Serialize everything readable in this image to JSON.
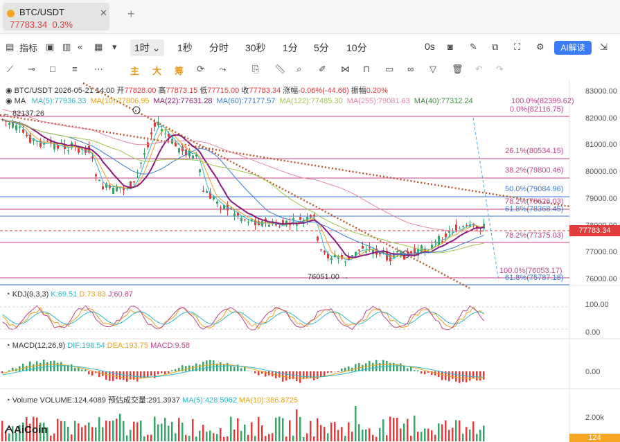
{
  "tab": {
    "name": "BTC/USDT",
    "price": "77783.34",
    "change": "0.3%",
    "close": "✕",
    "new": "+"
  },
  "toolbar": {
    "indicators_label": "指标",
    "intervals": [
      "1时",
      "1秒",
      "分时",
      "30秒",
      "1分",
      "5分",
      "10分"
    ],
    "selected_interval": "1时",
    "countdown": "0s",
    "ai_label": "AI解读"
  },
  "draw_tools": {
    "labels": [
      "主",
      "大",
      "筹"
    ]
  },
  "header": {
    "pair": "BTC/USDT",
    "datetime": "2026-05-21 14:00",
    "open_label": "开",
    "open": "77828.00",
    "high_label": "高",
    "high": "77873.15",
    "low_label": "低",
    "low": "77715.00",
    "close_label": "收",
    "close": "77783.34",
    "chg_label": "涨幅",
    "chg": "-0.06%(-44.66)",
    "amp_label": "振幅",
    "amp": "0.20%"
  },
  "ma": {
    "label": "MA",
    "items": [
      {
        "text": "MA(5):77936.33",
        "color": "#2fb8c9"
      },
      {
        "text": "MA(10):77806.95",
        "color": "#e8a21a"
      },
      {
        "text": "MA(22):77631.28",
        "color": "#8b1a7a"
      },
      {
        "text": "MA(60):77177.57",
        "color": "#3a7bd5"
      },
      {
        "text": "MA(122):77485.30",
        "color": "#9cc84a"
      },
      {
        "text": "MA(255):79081.63",
        "color": "#e68aa0"
      },
      {
        "text": "MA(40):77312.24",
        "color": "#3f8f3f"
      }
    ]
  },
  "price_axis": [
    "83000.00",
    "82000.00",
    "81000.00",
    "80000.00",
    "79000.00",
    "78000.00",
    "77000.00",
    "76000.00"
  ],
  "fib_levels": [
    {
      "text": "100.0%(82399.62)",
      "color": "#c0438a"
    },
    {
      "text": "0.0%(82116.75)",
      "color": "#c0438a"
    },
    {
      "text": "26.1%(80534.15)",
      "color": "#c0438a"
    },
    {
      "text": "38.2%(79800.46)",
      "color": "#c0438a"
    },
    {
      "text": "50.0%(79084.96)",
      "color": "#3a7bd5"
    },
    {
      "text": "78.2%(78626.03)",
      "color": "#c0438a"
    },
    {
      "text": "61.8%(78368.45)",
      "color": "#3a7bd5"
    },
    {
      "text": "78.2%(77375.03)",
      "color": "#c0438a"
    },
    {
      "text": "100.0%(76053.17)",
      "color": "#c0438a"
    },
    {
      "text": "61.8%(75787.18)",
      "color": "#3a7bd5"
    }
  ],
  "annotations": {
    "high_mark": "← 82137.26",
    "low_mark": "76051.00 →"
  },
  "last_price": "77783.34",
  "kdj": {
    "label": "KDJ(9,3,3)",
    "k": "K:69.51",
    "d": "D:73.83",
    "j": "J:60.87",
    "axis": [
      "100.00",
      "0.00"
    ]
  },
  "macd": {
    "label": "MACD(12,26,9)",
    "dif": "DIF:198.54",
    "dea": "DEA:193.75",
    "macd": "MACD:9.58",
    "axis": [
      "0.00"
    ]
  },
  "volume": {
    "label": "Volume",
    "vol": "VOLUME:124.4089",
    "est": "预估成交量:291.3937",
    "ma5": "MA(5):428.5962",
    "ma10": "MA(10):386.8725",
    "axis": [
      "2.00k"
    ],
    "last": "124"
  },
  "brand": "AiCoin"
}
